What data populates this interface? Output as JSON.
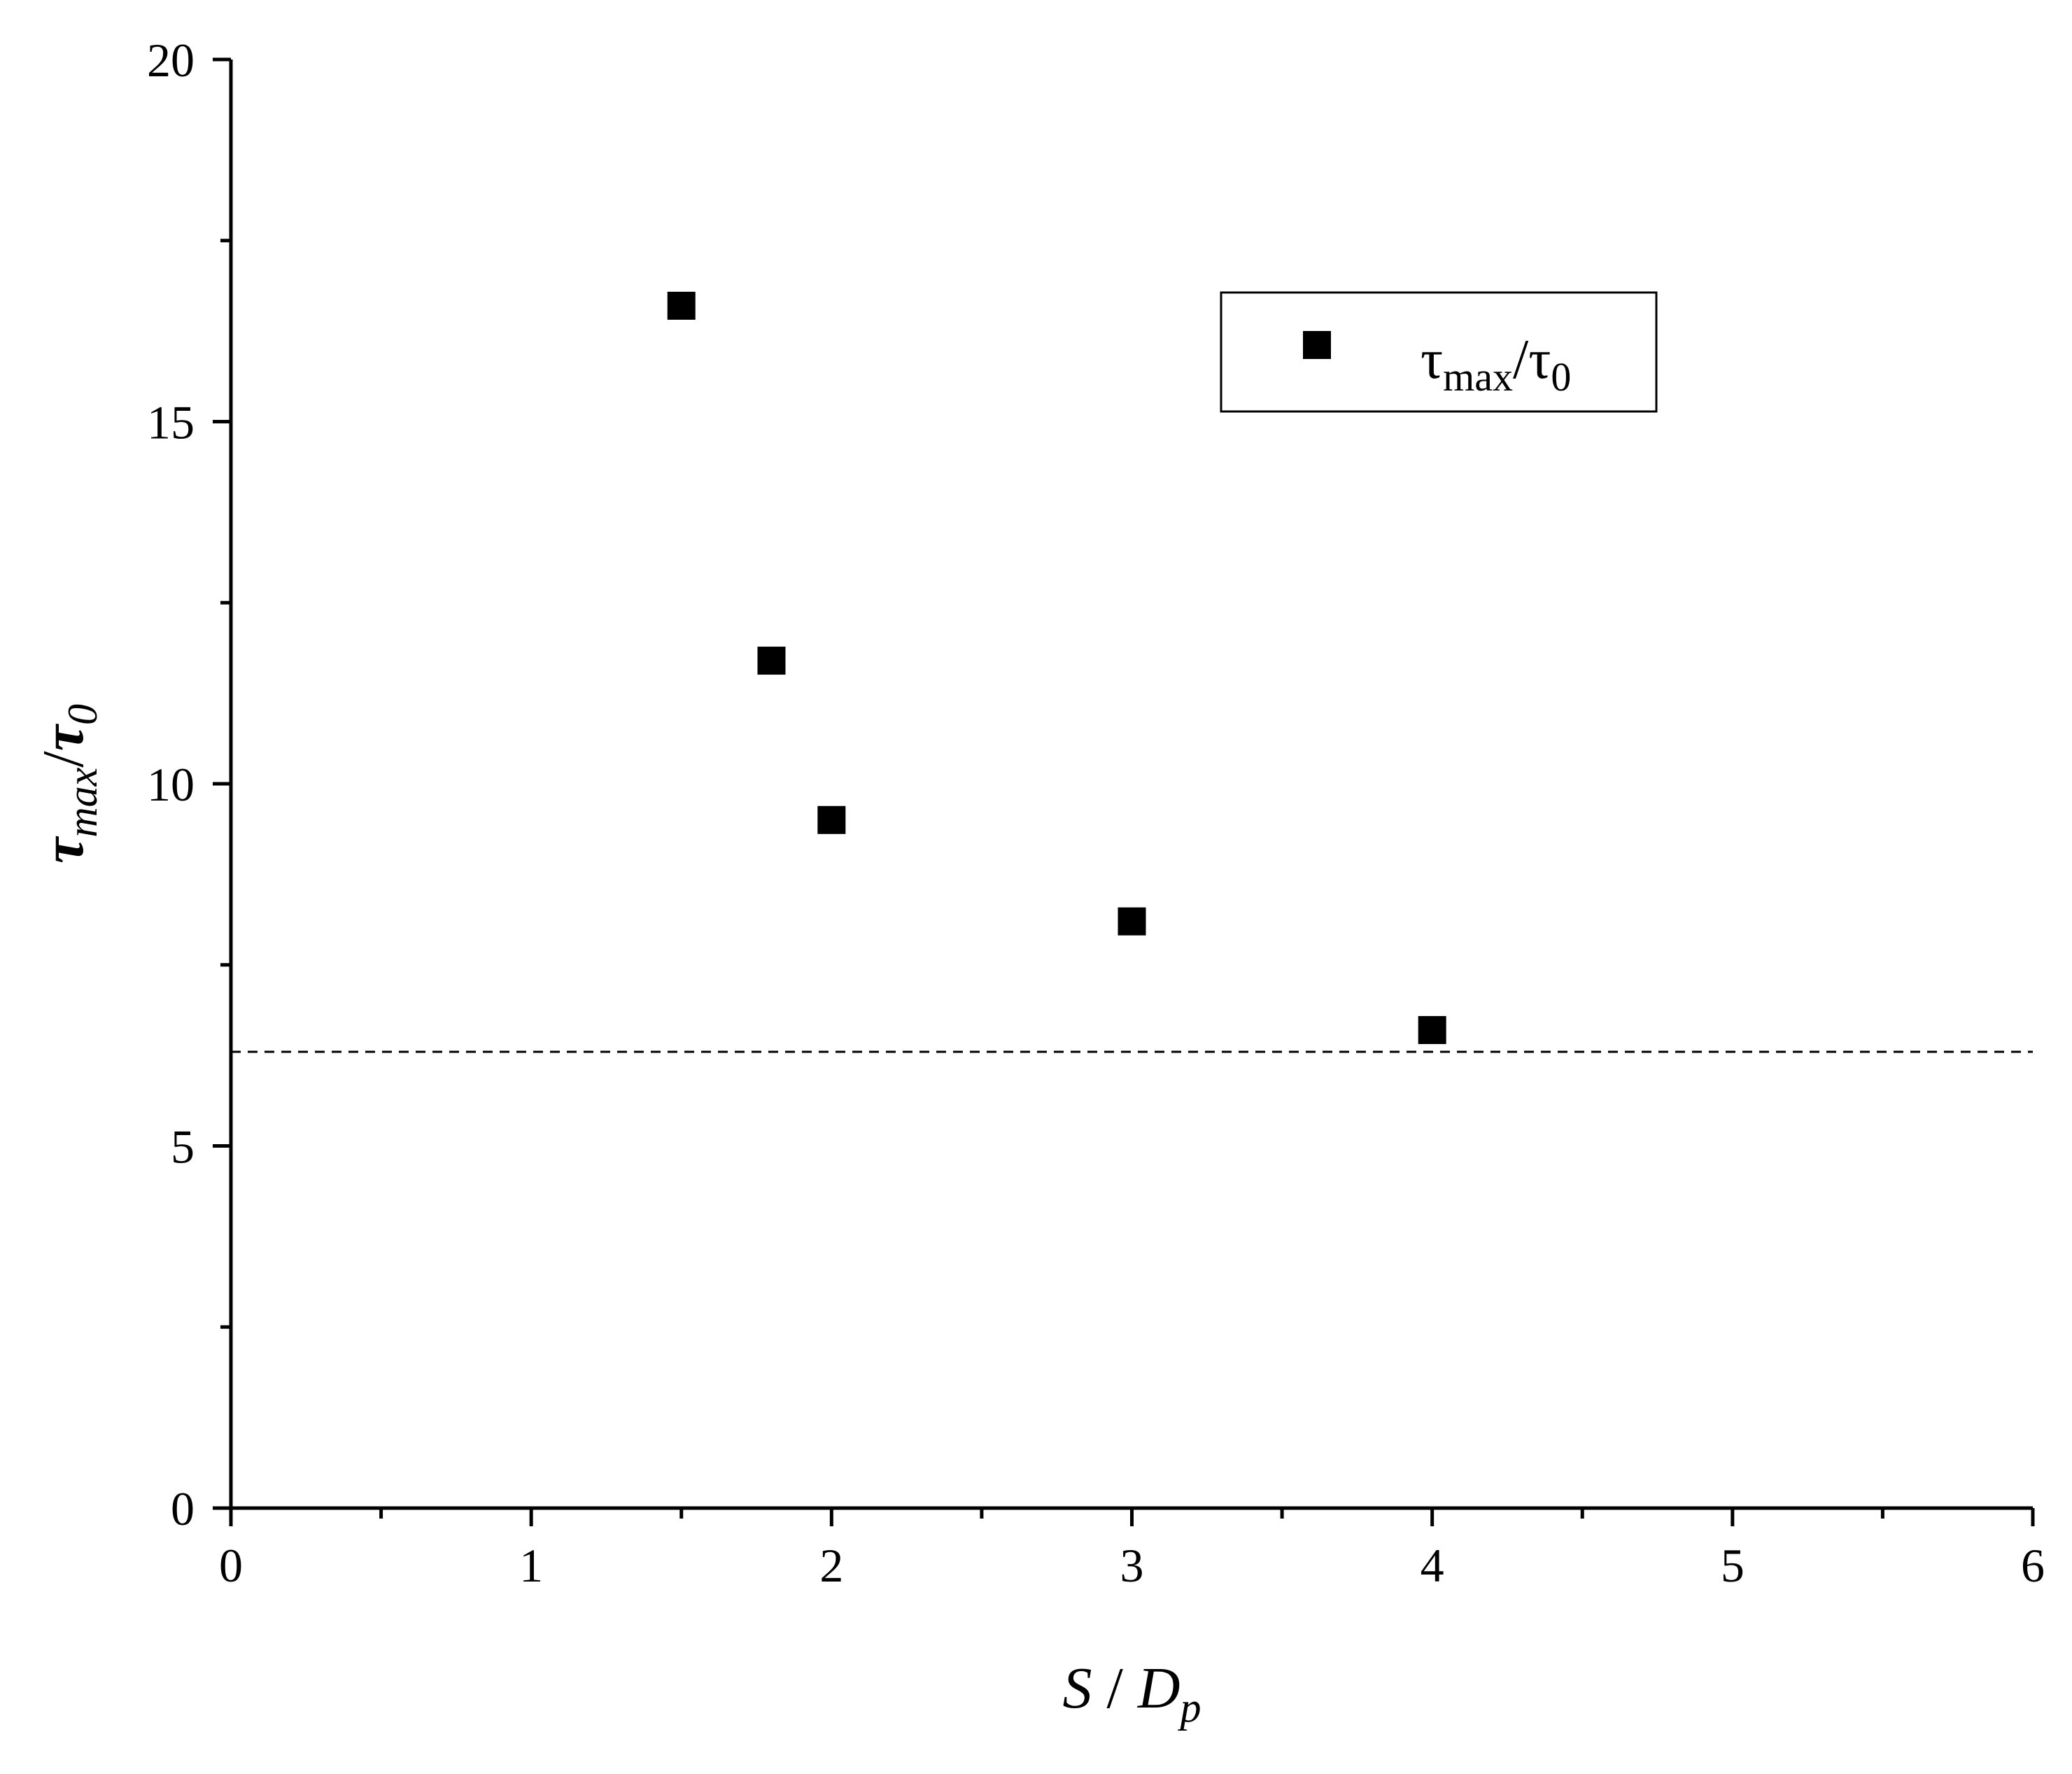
{
  "chart_data": {
    "type": "scatter",
    "x": [
      1.5,
      1.8,
      2.0,
      3.0,
      4.0
    ],
    "series": [
      {
        "name": "τmax/τ0",
        "values": [
          16.6,
          11.7,
          9.5,
          8.1,
          6.6
        ]
      }
    ],
    "reference_line": {
      "y": 6.3,
      "style": "dashed"
    },
    "xlim": [
      0,
      6
    ],
    "ylim": [
      0,
      20
    ],
    "xticks": [
      0,
      1,
      2,
      3,
      4,
      5,
      6
    ],
    "yticks": [
      0,
      5,
      10,
      15,
      20
    ],
    "xlabel": {
      "base": "S",
      "sep": " / ",
      "var": "D",
      "sub": "p"
    },
    "ylabel": {
      "base": "τ",
      "sub": "max",
      "sep": "/",
      "var": "τ",
      "sub2": "0"
    },
    "legend": {
      "placement": "top-right",
      "entries": [
        {
          "base": "τ",
          "sub": "max",
          "sep": "/",
          "var": "τ",
          "sub2": "0",
          "marker": "square"
        }
      ]
    },
    "grid": false,
    "marker_color": "#000000"
  }
}
